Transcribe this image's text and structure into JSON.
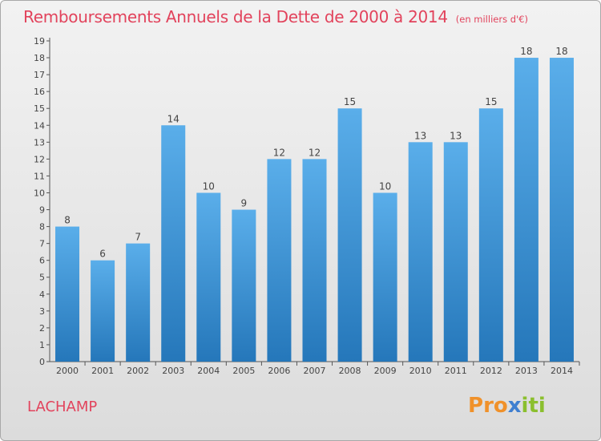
{
  "chart_data": {
    "type": "bar",
    "title": "Remboursements Annuels de la Dette de 2000 à 2014",
    "unit": "(en milliers d'€)",
    "categories": [
      "2000",
      "2001",
      "2002",
      "2003",
      "2004",
      "2005",
      "2006",
      "2007",
      "2008",
      "2009",
      "2010",
      "2011",
      "2012",
      "2013",
      "2014"
    ],
    "values": [
      8,
      6,
      7,
      14,
      10,
      9,
      12,
      12,
      15,
      10,
      13,
      13,
      15,
      18,
      18
    ],
    "xlabel": "",
    "ylabel": "",
    "ylim": [
      0,
      19
    ],
    "yticks": [
      0,
      1,
      2,
      3,
      4,
      5,
      6,
      7,
      8,
      9,
      10,
      11,
      12,
      13,
      14,
      15,
      16,
      17,
      18,
      19
    ],
    "grid": false
  },
  "commune": "LACHAMP",
  "brand": {
    "letters": [
      "P",
      "r",
      "o",
      "x",
      "i",
      "t",
      "i"
    ]
  },
  "colors": {
    "title": "#e2435c",
    "bar_top": "#5aaeea",
    "bar_bottom": "#2577ba",
    "axis": "#555555",
    "brand": [
      "#f0912a",
      "#f0912a",
      "#f0912a",
      "#3f7fd0",
      "#8bbf2e",
      "#8bbf2e",
      "#8bbf2e"
    ]
  }
}
